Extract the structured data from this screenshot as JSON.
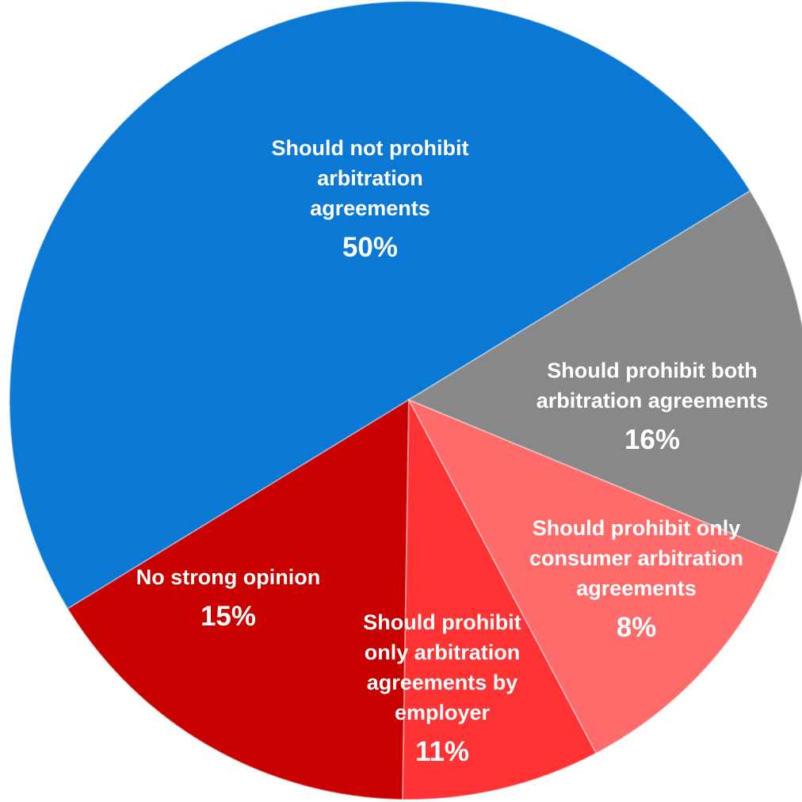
{
  "chart_data": {
    "type": "pie",
    "slices": [
      {
        "label": [
          "Should not prohibit",
          "arbitration",
          "agreements"
        ],
        "value": 50,
        "value_label": "50%",
        "color": "#0b78d4"
      },
      {
        "label": [
          "Should prohibit both",
          "arbitration agreements"
        ],
        "value": 16,
        "value_label": "16%",
        "color": "#c80000"
      },
      {
        "label": [
          "Should prohibit only",
          "consumer arbitration",
          "agreements"
        ],
        "value": 8,
        "value_label": "8%",
        "color": "#ff3333"
      },
      {
        "label": [
          "Should prohibit",
          "only arbitration",
          "agreements by",
          "employer"
        ],
        "value": 11,
        "value_label": "11%",
        "color": "#ff6b6b"
      },
      {
        "label": [
          "No strong opinion"
        ],
        "value": 15,
        "value_label": "15%",
        "color": "#888888"
      }
    ]
  }
}
